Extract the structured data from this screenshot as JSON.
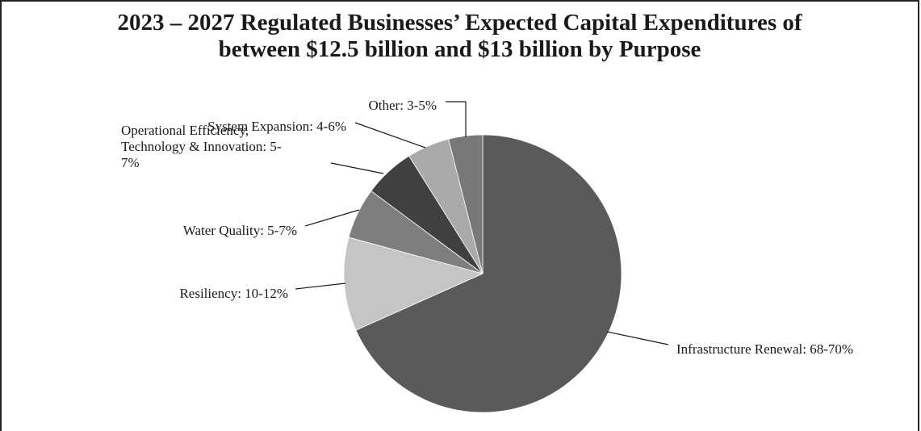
{
  "chart_data": {
    "type": "pie",
    "title_lines": [
      "2023 – 2027 Regulated Businesses’ Expected Capital Expenditures of",
      "between $12.5 billion and $13 billion by Purpose"
    ],
    "slices": [
      {
        "label_lines": [
          "Infrastructure Renewal: 68-70%"
        ],
        "value": 69,
        "range": "68-70%",
        "color": "#5a5a5c"
      },
      {
        "label_lines": [
          "Resiliency: 10-12%"
        ],
        "value": 11,
        "range": "10-12%",
        "color": "#c4c5c7"
      },
      {
        "label_lines": [
          "Water Quality: 5-7%"
        ],
        "value": 6,
        "range": "5-7%",
        "color": "#7d7e80"
      },
      {
        "label_lines": [
          "Operational Efficiency,",
          "Technology & Innovation: 5-",
          "7%"
        ],
        "value": 6,
        "range": "5-7%",
        "color": "#3f4042"
      },
      {
        "label_lines": [
          "System Expansion: 4-6%"
        ],
        "value": 5,
        "range": "4-6%",
        "color": "#a9aaac"
      },
      {
        "label_lines": [
          "Other: 3-5%"
        ],
        "value": 4,
        "range": "3-5%",
        "color": "#77787a"
      }
    ]
  }
}
